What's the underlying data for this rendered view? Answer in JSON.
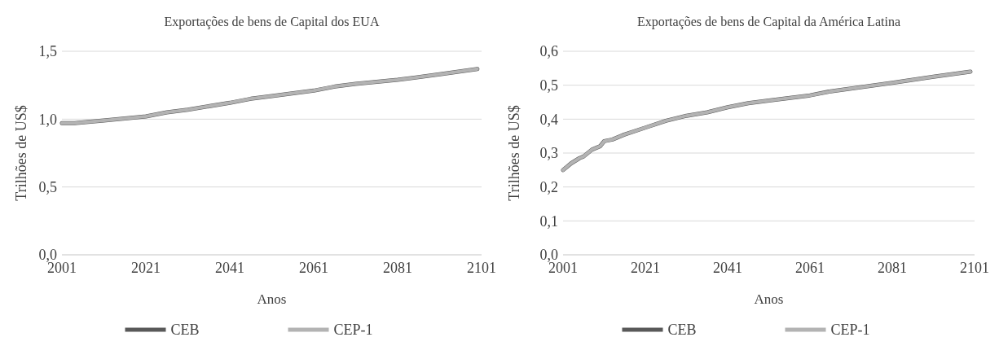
{
  "chart_data": [
    {
      "type": "line",
      "title": "Exportações de bens de Capital dos EUA",
      "xlabel": "Anos",
      "ylabel": "Trilhões de US$",
      "x": [
        2001,
        2004,
        2011,
        2021,
        2026,
        2031,
        2041,
        2046,
        2051,
        2061,
        2066,
        2071,
        2081,
        2091,
        2100
      ],
      "series": [
        {
          "name": "CEB",
          "color": "#595959",
          "values": [
            0.97,
            0.97,
            0.99,
            1.02,
            1.05,
            1.07,
            1.12,
            1.15,
            1.17,
            1.21,
            1.24,
            1.26,
            1.29,
            1.33,
            1.37
          ]
        },
        {
          "name": "CEP-1",
          "color": "#b3b3b3",
          "values": [
            0.97,
            0.97,
            0.99,
            1.02,
            1.05,
            1.07,
            1.12,
            1.15,
            1.17,
            1.21,
            1.24,
            1.26,
            1.29,
            1.33,
            1.37
          ]
        }
      ],
      "xlim": [
        2001,
        2101
      ],
      "xticks": [
        2001,
        2021,
        2041,
        2061,
        2081,
        2101
      ],
      "ylim": [
        0,
        1.5
      ],
      "yticks": [
        {
          "value": 0,
          "label": "0,0"
        },
        {
          "value": 0.5,
          "label": "0,5"
        },
        {
          "value": 1,
          "label": "1,0"
        },
        {
          "value": 1.5,
          "label": "1,5"
        }
      ],
      "grid": "y",
      "legend": "bottom"
    },
    {
      "type": "line",
      "title": "Exportações de bens de Capital da América Latina",
      "xlabel": "Anos",
      "ylabel": "Trilhões de US$",
      "x": [
        2001,
        2003,
        2005,
        2006,
        2008,
        2010,
        2011,
        2013,
        2016,
        2021,
        2026,
        2031,
        2036,
        2041,
        2046,
        2051,
        2061,
        2066,
        2071,
        2081,
        2091,
        2100
      ],
      "series": [
        {
          "name": "CEB",
          "color": "#595959",
          "values": [
            0.25,
            0.27,
            0.285,
            0.29,
            0.31,
            0.32,
            0.335,
            0.34,
            0.355,
            0.375,
            0.395,
            0.41,
            0.42,
            0.435,
            0.447,
            0.455,
            0.47,
            0.482,
            0.49,
            0.507,
            0.525,
            0.54
          ]
        },
        {
          "name": "CEP-1",
          "color": "#b3b3b3",
          "values": [
            0.25,
            0.27,
            0.285,
            0.29,
            0.31,
            0.32,
            0.335,
            0.34,
            0.355,
            0.375,
            0.395,
            0.41,
            0.42,
            0.435,
            0.447,
            0.455,
            0.47,
            0.482,
            0.49,
            0.507,
            0.525,
            0.54
          ]
        }
      ],
      "xlim": [
        2001,
        2101
      ],
      "xticks": [
        2001,
        2021,
        2041,
        2061,
        2081,
        2101
      ],
      "ylim": [
        0,
        0.6
      ],
      "yticks": [
        {
          "value": 0,
          "label": "0,0"
        },
        {
          "value": 0.1,
          "label": "0,1"
        },
        {
          "value": 0.2,
          "label": "0,2"
        },
        {
          "value": 0.3,
          "label": "0,3"
        },
        {
          "value": 0.4,
          "label": "0,4"
        },
        {
          "value": 0.5,
          "label": "0,5"
        },
        {
          "value": 0.6,
          "label": "0,6"
        }
      ],
      "grid": "y",
      "legend": "bottom"
    }
  ]
}
